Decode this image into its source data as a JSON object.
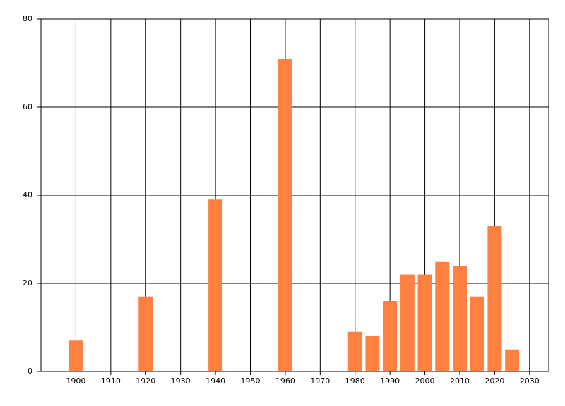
{
  "chart_data": {
    "type": "bar",
    "x": [
      1900,
      1920,
      1940,
      1960,
      1980,
      1985,
      1990,
      1995,
      2000,
      2005,
      2010,
      2015,
      2020,
      2025
    ],
    "values": [
      7,
      17,
      39,
      71,
      9,
      8,
      16,
      22,
      22,
      25,
      24,
      17,
      33,
      5
    ],
    "color": "#ff8040",
    "xlim": [
      1890,
      2035.5
    ],
    "xticks": [
      1900,
      1910,
      1920,
      1930,
      1940,
      1950,
      1960,
      1970,
      1980,
      1990,
      2000,
      2010,
      2020,
      2030
    ],
    "ylim": [
      0,
      80
    ],
    "yticks": [
      0,
      20,
      40,
      60,
      80
    ],
    "grid": true
  }
}
